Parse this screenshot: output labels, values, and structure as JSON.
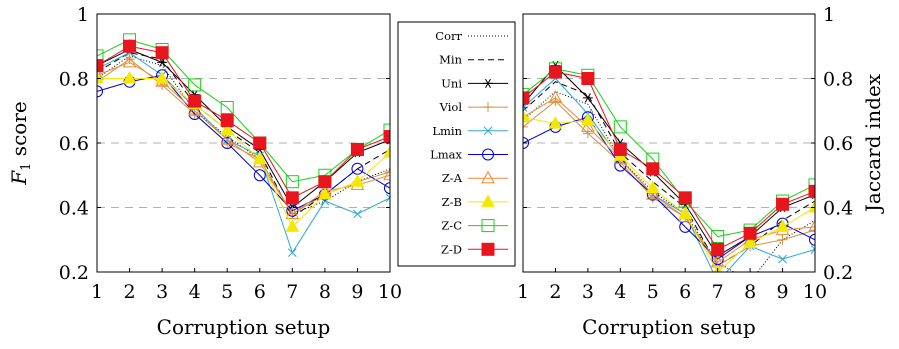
{
  "chart_data": [
    {
      "type": "line",
      "xlabel": "Corruption setup",
      "ylabel": "F1 score",
      "ylabel_parts": {
        "base": "F",
        "sub": "1",
        "rest": " score"
      },
      "ylabel_side": "left",
      "x": [
        1,
        2,
        3,
        4,
        5,
        6,
        7,
        8,
        9,
        10
      ],
      "xlim": [
        1,
        10
      ],
      "ylim": [
        0.2,
        1
      ],
      "yticks": [
        "0.2",
        "0.4",
        "0.6",
        "0.8",
        "1"
      ],
      "xticks": [
        "1",
        "2",
        "3",
        "4",
        "5",
        "6",
        "7",
        "8",
        "9",
        "10"
      ],
      "grid": "horizontal dashed",
      "series": [
        {
          "name": "Corr",
          "values": [
            0.8,
            0.87,
            0.84,
            0.7,
            0.62,
            0.55,
            0.38,
            0.42,
            0.48,
            0.52
          ]
        },
        {
          "name": "Min",
          "values": [
            0.82,
            0.88,
            0.86,
            0.72,
            0.64,
            0.57,
            0.37,
            0.44,
            0.52,
            0.58
          ]
        },
        {
          "name": "Uni",
          "values": [
            0.84,
            0.89,
            0.85,
            0.75,
            0.65,
            0.58,
            0.4,
            0.48,
            0.57,
            0.61
          ]
        },
        {
          "name": "Viol",
          "values": [
            0.79,
            0.86,
            0.78,
            0.69,
            0.6,
            0.55,
            0.38,
            0.44,
            0.48,
            0.51
          ]
        },
        {
          "name": "Lmin",
          "values": [
            0.83,
            0.88,
            0.81,
            0.71,
            0.61,
            0.56,
            0.26,
            0.42,
            0.38,
            0.43
          ]
        },
        {
          "name": "Lmax",
          "values": [
            0.76,
            0.79,
            0.81,
            0.69,
            0.6,
            0.5,
            0.39,
            0.44,
            0.52,
            0.46
          ]
        },
        {
          "name": "Z-A",
          "values": [
            0.81,
            0.85,
            0.79,
            0.7,
            0.61,
            0.54,
            0.38,
            0.45,
            0.47,
            0.5
          ]
        },
        {
          "name": "Z-B",
          "values": [
            0.8,
            0.8,
            0.8,
            0.72,
            0.64,
            0.55,
            0.34,
            0.44,
            0.48,
            0.57
          ]
        },
        {
          "name": "Z-C",
          "values": [
            0.87,
            0.92,
            0.89,
            0.78,
            0.71,
            0.6,
            0.48,
            0.5,
            0.58,
            0.64
          ]
        },
        {
          "name": "Z-D",
          "values": [
            0.84,
            0.9,
            0.88,
            0.73,
            0.67,
            0.6,
            0.43,
            0.48,
            0.58,
            0.62
          ]
        }
      ]
    },
    {
      "type": "line",
      "xlabel": "Corruption setup",
      "ylabel": "Jaccard index",
      "ylabel_side": "right",
      "x": [
        1,
        2,
        3,
        4,
        5,
        6,
        7,
        8,
        9,
        10
      ],
      "xlim": [
        1,
        10
      ],
      "ylim": [
        0.2,
        1
      ],
      "yticks": [
        "0.2",
        "0.4",
        "0.6",
        "0.8",
        "1"
      ],
      "xticks": [
        "1",
        "2",
        "3",
        "4",
        "5",
        "6",
        "7",
        "8",
        "9",
        "10"
      ],
      "grid": "horizontal dashed",
      "series": [
        {
          "name": "Corr",
          "values": [
            0.67,
            0.76,
            0.72,
            0.55,
            0.45,
            0.38,
            0.23,
            0.15,
            0.3,
            0.36
          ]
        },
        {
          "name": "Min",
          "values": [
            0.7,
            0.79,
            0.75,
            0.57,
            0.48,
            0.4,
            0.22,
            0.28,
            0.36,
            0.42
          ]
        },
        {
          "name": "Uni",
          "values": [
            0.72,
            0.84,
            0.74,
            0.6,
            0.51,
            0.41,
            0.25,
            0.31,
            0.4,
            0.44
          ]
        },
        {
          "name": "Viol",
          "values": [
            0.65,
            0.73,
            0.63,
            0.54,
            0.43,
            0.37,
            0.22,
            0.28,
            0.3,
            0.33
          ]
        },
        {
          "name": "Lmin",
          "values": [
            0.71,
            0.8,
            0.69,
            0.55,
            0.44,
            0.38,
            0.16,
            0.28,
            0.24,
            0.27
          ]
        },
        {
          "name": "Lmax",
          "values": [
            0.6,
            0.65,
            0.68,
            0.53,
            0.44,
            0.34,
            0.24,
            0.31,
            0.35,
            0.3
          ]
        },
        {
          "name": "Z-A",
          "values": [
            0.68,
            0.74,
            0.65,
            0.55,
            0.44,
            0.37,
            0.23,
            0.3,
            0.33,
            0.34
          ]
        },
        {
          "name": "Z-B",
          "values": [
            0.68,
            0.66,
            0.67,
            0.56,
            0.46,
            0.38,
            0.2,
            0.29,
            0.34,
            0.4
          ]
        },
        {
          "name": "Z-C",
          "values": [
            0.75,
            0.83,
            0.81,
            0.65,
            0.55,
            0.42,
            0.31,
            0.33,
            0.42,
            0.47
          ]
        },
        {
          "name": "Z-D",
          "values": [
            0.74,
            0.82,
            0.8,
            0.58,
            0.52,
            0.43,
            0.27,
            0.32,
            0.41,
            0.45
          ]
        }
      ]
    }
  ],
  "legend": {
    "placement": "between-charts",
    "entries": [
      "Corr",
      "Min",
      "Uni",
      "Viol",
      "Lmin",
      "Lmax",
      "Z-A",
      "Z-B",
      "Z-C",
      "Z-D"
    ]
  },
  "series_styles": {
    "Corr": {
      "color": "#000000",
      "dash": "1,2",
      "marker": "none",
      "fill": "none"
    },
    "Min": {
      "color": "#000000",
      "dash": "6,4",
      "marker": "none",
      "fill": "none"
    },
    "Uni": {
      "color": "#000000",
      "dash": "",
      "marker": "asterisk",
      "fill": "none"
    },
    "Viol": {
      "color": "#d2914a",
      "dash": "",
      "marker": "plus",
      "fill": "none"
    },
    "Lmin": {
      "color": "#2aa9d6",
      "dash": "",
      "marker": "cross",
      "fill": "none"
    },
    "Lmax": {
      "color": "#0000cc",
      "dash": "",
      "marker": "circle",
      "fill": "none"
    },
    "Z-A": {
      "color": "#f08a2c",
      "dash": "",
      "marker": "triangle",
      "fill": "none"
    },
    "Z-B": {
      "color": "#f5e800",
      "dash": "",
      "marker": "triangle",
      "fill": "#f5e800"
    },
    "Z-C": {
      "color": "#19d219",
      "dash": "",
      "marker": "square",
      "fill": "none"
    },
    "Z-D": {
      "color": "#e8141e",
      "dash": "",
      "marker": "square",
      "fill": "#e8141e"
    }
  }
}
